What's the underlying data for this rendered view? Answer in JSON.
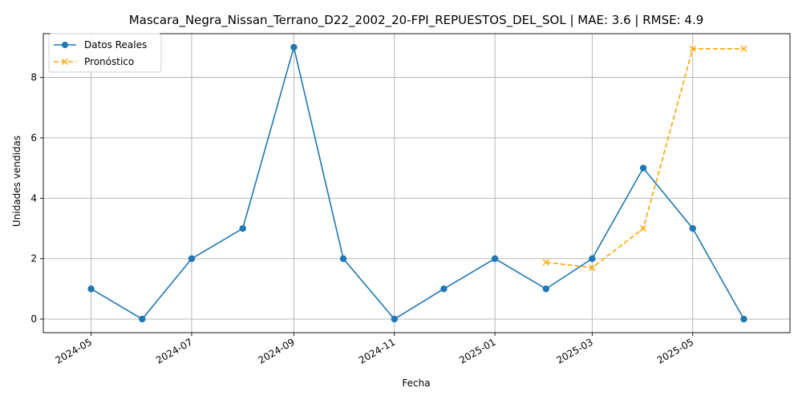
{
  "chart_data": {
    "type": "line",
    "title": "Mascara_Negra_Nissan_Terrano_D22_2002_20-FPI_REPUESTOS_DEL_SOL | MAE: 3.6 | RMSE: 4.9",
    "xlabel": "Fecha",
    "ylabel": "Unidades vendidas",
    "x_ticks": [
      "2024-05",
      "2024-07",
      "2024-09",
      "2024-11",
      "2025-01",
      "2025-03",
      "2025-05"
    ],
    "y_ticks": [
      0,
      2,
      4,
      6,
      8
    ],
    "ylim": [
      -0.45,
      9.45
    ],
    "xlim": [
      "2024-04-02",
      "2025-06-29"
    ],
    "grid": true,
    "legend_position": "top-left",
    "series": [
      {
        "name": "Datos Reales",
        "color": "#1f77b4",
        "style": "solid",
        "marker": "circle",
        "x": [
          "2024-05-01",
          "2024-06-01",
          "2024-07-01",
          "2024-08-01",
          "2024-09-01",
          "2024-10-01",
          "2024-11-01",
          "2024-12-01",
          "2025-01-01",
          "2025-02-01",
          "2025-03-01",
          "2025-04-01",
          "2025-05-01",
          "2025-06-01"
        ],
        "values": [
          1,
          0,
          2,
          3,
          9,
          2,
          0,
          1,
          2,
          1,
          2,
          5,
          3,
          0
        ]
      },
      {
        "name": "Pronóstico",
        "color": "#ffa500",
        "style": "dashed",
        "marker": "x",
        "x": [
          "2025-02-01",
          "2025-03-01",
          "2025-04-01",
          "2025-05-01",
          "2025-06-01"
        ],
        "values": [
          1.88,
          1.7,
          3.0,
          8.95,
          8.95
        ]
      }
    ]
  }
}
